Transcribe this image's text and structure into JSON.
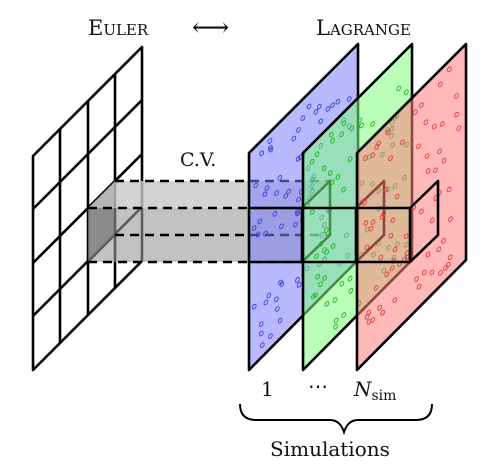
{
  "header": {
    "left_label": "Euler",
    "right_label": "Lagrange",
    "arrow_symbol": "⟷"
  },
  "control_volume": {
    "label": "C.V."
  },
  "planes": [
    {
      "index_label": "1",
      "fill": "#7f7fff",
      "dot": "#3a3ae0",
      "seed": 7
    },
    {
      "index_label": "⋯",
      "fill": "#7fff7f",
      "dot": "#21b021",
      "seed": 19
    },
    {
      "index_label": "N",
      "index_subscript": "sim",
      "fill": "#ff7f7f",
      "dot": "#e03a3a",
      "seed": 31
    }
  ],
  "simulations_label": "Simulations",
  "colors": {
    "line": "#000000",
    "cv_light": "#c8c8c8",
    "cv_dark": "#555555"
  }
}
